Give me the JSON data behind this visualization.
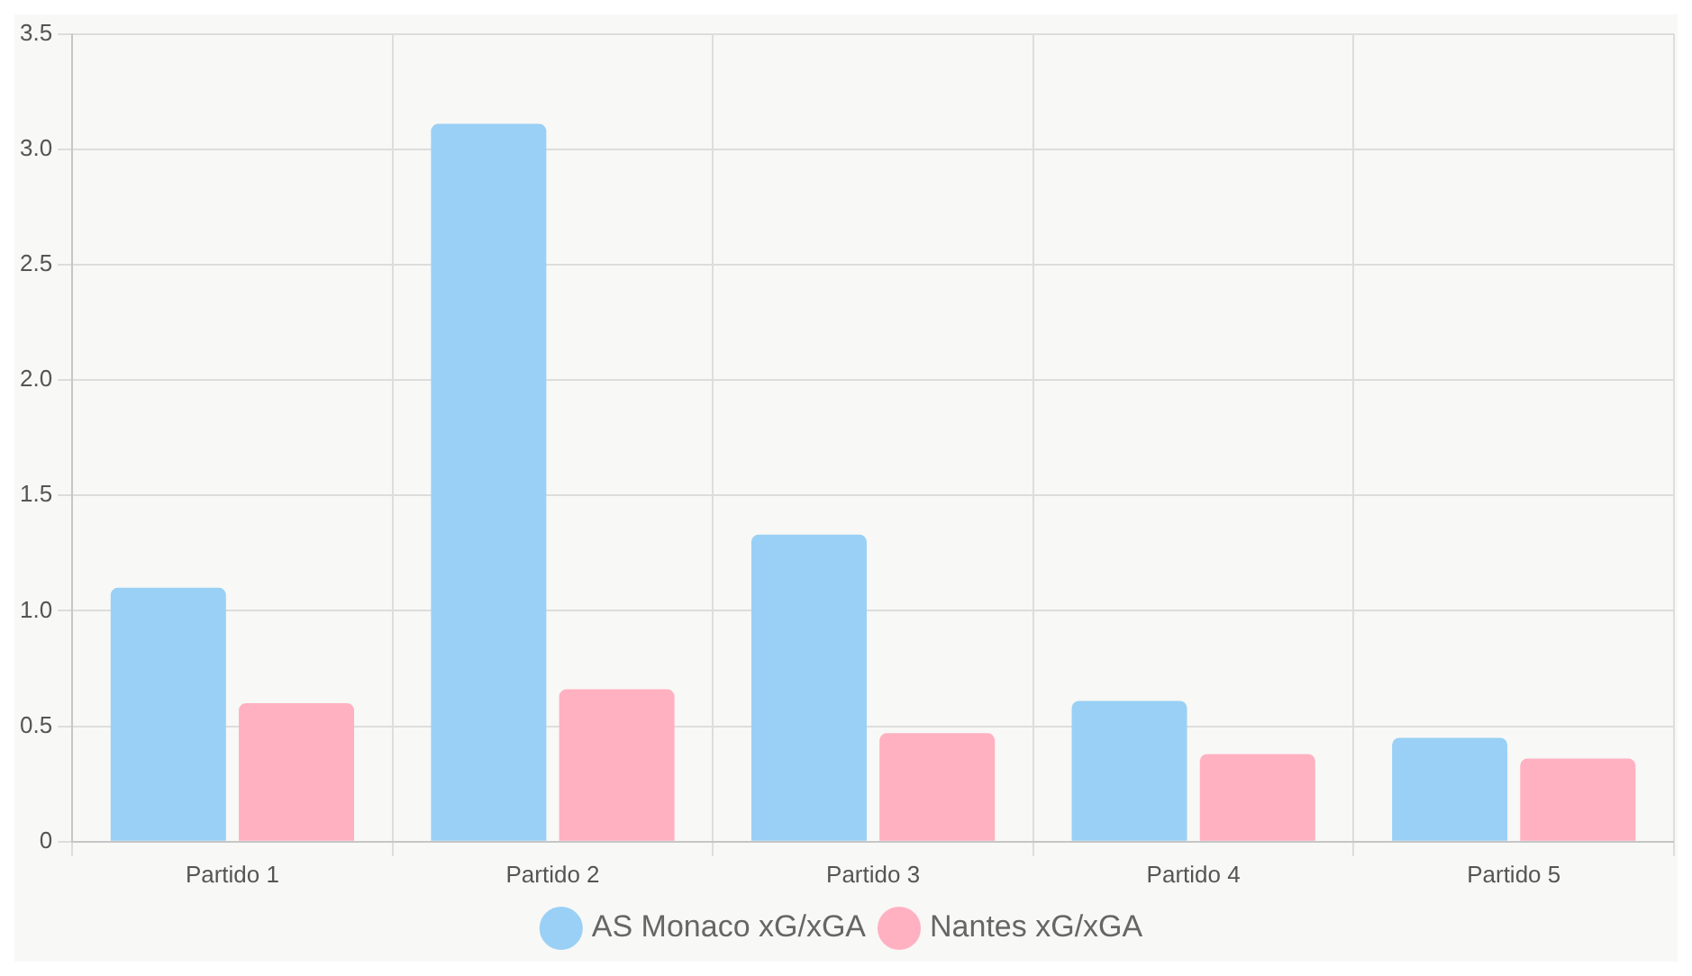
{
  "chart_data": {
    "type": "bar",
    "categories": [
      "Partido 1",
      "Partido 2",
      "Partido 3",
      "Partido 4",
      "Partido 5"
    ],
    "series": [
      {
        "name": "AS Monaco xG/xGA",
        "color": "#9ad0f5",
        "values": [
          1.1,
          3.11,
          1.33,
          0.61,
          0.45
        ]
      },
      {
        "name": "Nantes xG/xGA",
        "color": "#ffb1c1",
        "values": [
          0.6,
          0.66,
          0.47,
          0.38,
          0.36
        ]
      }
    ],
    "ylim": [
      0,
      3.5
    ],
    "yticks": [
      0,
      {
        "value": 0.5,
        "label": "0.5"
      },
      {
        "value": 1,
        "label": "1.0"
      },
      {
        "value": 1.5,
        "label": "1.5"
      },
      {
        "value": 2,
        "label": "2.0"
      },
      {
        "value": 2.5,
        "label": "2.5"
      },
      {
        "value": 3,
        "label": "3.0"
      },
      {
        "value": 3.5,
        "label": "3.5"
      }
    ],
    "grid": true,
    "legend": "bottom"
  }
}
